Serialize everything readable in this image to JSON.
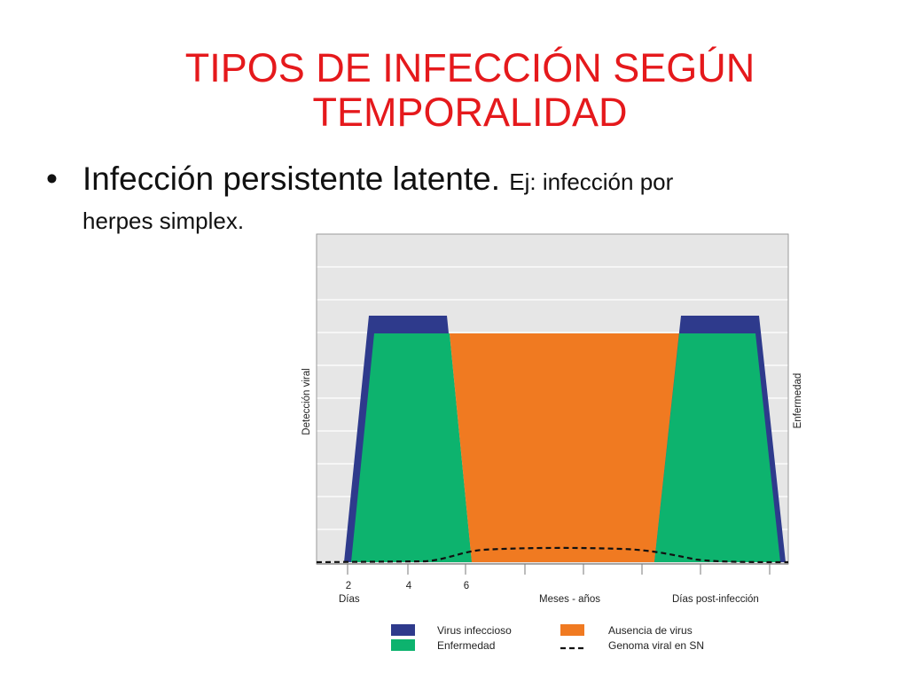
{
  "slide": {
    "title_line1": "TIPOS DE INFECCIÓN SEGÚN",
    "title_line2": "TEMPORALIDAD",
    "bullet": "•",
    "bullet_main": "Infección persistente latente.",
    "bullet_detail_1": "Ej: infección por",
    "bullet_detail_2": "herpes simplex."
  },
  "diagram": {
    "y_label_left": "Detección viral",
    "y_label_right": "Enfermedad",
    "x_ticks": [
      "2",
      "4",
      "6"
    ],
    "x_label_days": "Días",
    "x_label_months": "Meses - años",
    "x_label_post": "Días post-infección",
    "colors": {
      "virus_infeccioso": "#2e3a8c",
      "enfermedad": "#0db36e",
      "ausencia_de_virus": "#f07a21",
      "plot_background": "#e6e6e6",
      "grid": "#ffffff"
    },
    "legend": [
      {
        "label": "Virus infeccioso",
        "symbol": "swatch",
        "color": "#2e3a8c"
      },
      {
        "label": "Ausencia de virus",
        "symbol": "swatch",
        "color": "#f07a21"
      },
      {
        "label": "Enfermedad",
        "symbol": "swatch",
        "color": "#0db36e"
      },
      {
        "label": "Genoma viral en SN",
        "symbol": "dashed-line",
        "color": "#111111"
      }
    ]
  }
}
